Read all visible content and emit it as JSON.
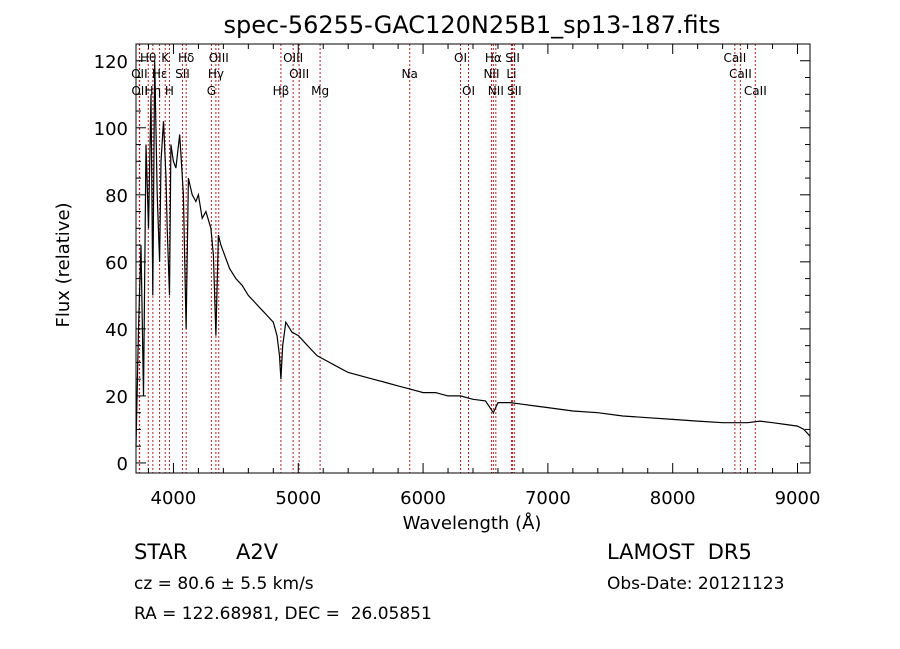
{
  "chart_data": {
    "type": "line",
    "title": "spec-56255-GAC120N25B1_sp13-187.fits",
    "xlabel": "Wavelength (Å)",
    "ylabel": "Flux (relative)",
    "xlim": [
      3700,
      9100
    ],
    "ylim": [
      -3,
      125
    ],
    "xticks": [
      4000,
      5000,
      6000,
      7000,
      8000,
      9000
    ],
    "yticks": [
      0,
      20,
      40,
      60,
      80,
      100,
      120
    ],
    "grid": false,
    "line_color": "#000000",
    "marker_color": "#b22222",
    "series": [
      {
        "x": [
          3700,
          3720,
          3740,
          3760,
          3780,
          3800,
          3820,
          3835,
          3850,
          3870,
          3889,
          3900,
          3920,
          3940,
          3950,
          3968,
          3980,
          4000,
          4020,
          4050,
          4080,
          4101,
          4120,
          4150,
          4180,
          4200,
          4230,
          4260,
          4300,
          4320,
          4340,
          4360,
          4380,
          4400,
          4450,
          4500,
          4550,
          4600,
          4650,
          4700,
          4750,
          4800,
          4830,
          4850,
          4861,
          4875,
          4900,
          4950,
          5000,
          5050,
          5100,
          5150,
          5200,
          5300,
          5400,
          5500,
          5600,
          5700,
          5800,
          5900,
          6000,
          6100,
          6200,
          6300,
          6400,
          6500,
          6563,
          6600,
          6700,
          6800,
          6900,
          7000,
          7200,
          7400,
          7600,
          7800,
          8000,
          8200,
          8400,
          8500,
          8600,
          8700,
          8800,
          8900,
          9000,
          9050,
          9100
        ],
        "y": [
          5,
          40,
          65,
          20,
          95,
          70,
          110,
          50,
          120,
          80,
          60,
          90,
          102,
          85,
          70,
          50,
          95,
          90,
          88,
          98,
          80,
          40,
          85,
          80,
          78,
          80,
          73,
          75,
          70,
          62,
          38,
          68,
          65,
          63,
          58,
          55,
          53,
          50,
          48,
          46,
          44,
          42,
          38,
          32,
          25,
          35,
          42,
          39,
          38,
          36,
          34,
          32,
          31,
          29,
          27,
          26,
          25,
          24,
          23,
          22,
          21,
          21,
          20,
          20,
          19,
          18.5,
          15,
          18,
          18,
          17.5,
          17,
          16.5,
          15.5,
          15,
          14,
          13.5,
          13,
          12.5,
          12,
          12,
          12,
          12.5,
          12,
          11.5,
          11,
          10,
          8
        ]
      }
    ],
    "lines_top": [
      {
        "label": "Hθ",
        "x": 3798
      },
      {
        "label": "K",
        "x": 3934
      },
      {
        "label": "Hδ",
        "x": 4102
      },
      {
        "label": "OIII",
        "x": 4363
      },
      {
        "label": "OIII",
        "x": 4959
      },
      {
        "label": "OI",
        "x": 6300
      },
      {
        "label": "Hα",
        "x": 6563
      },
      {
        "label": "SII",
        "x": 6717
      },
      {
        "label": "CaII",
        "x": 8498
      }
    ],
    "lines_mid": [
      {
        "label": "OII",
        "x": 3727
      },
      {
        "label": "Hε",
        "x": 3889
      },
      {
        "label": "SII",
        "x": 4072
      },
      {
        "label": "Hγ",
        "x": 4340
      },
      {
        "label": "OIII",
        "x": 5007
      },
      {
        "label": "Na",
        "x": 5893
      },
      {
        "label": "NII",
        "x": 6548
      },
      {
        "label": "Li",
        "x": 6708
      },
      {
        "label": "CaII",
        "x": 8542
      }
    ],
    "lines_bot": [
      {
        "label": "OII",
        "x": 3729
      },
      {
        "label": "Hη",
        "x": 3835
      },
      {
        "label": "H",
        "x": 3968
      },
      {
        "label": "G",
        "x": 4304
      },
      {
        "label": "Hβ",
        "x": 4861
      },
      {
        "label": "Mg",
        "x": 5175
      },
      {
        "label": "OI",
        "x": 6364
      },
      {
        "label": "NII",
        "x": 6583
      },
      {
        "label": "SII",
        "x": 6731
      },
      {
        "label": "CaII",
        "x": 8662
      }
    ]
  },
  "info": {
    "class": "STAR",
    "subclass": "A2V",
    "survey": "LAMOST  DR5",
    "cz": "cz = 80.6 ± 5.5 km/s",
    "obs_date": "Obs-Date: 20121123",
    "radec": "RA = 122.68981, DEC =  26.05851"
  }
}
